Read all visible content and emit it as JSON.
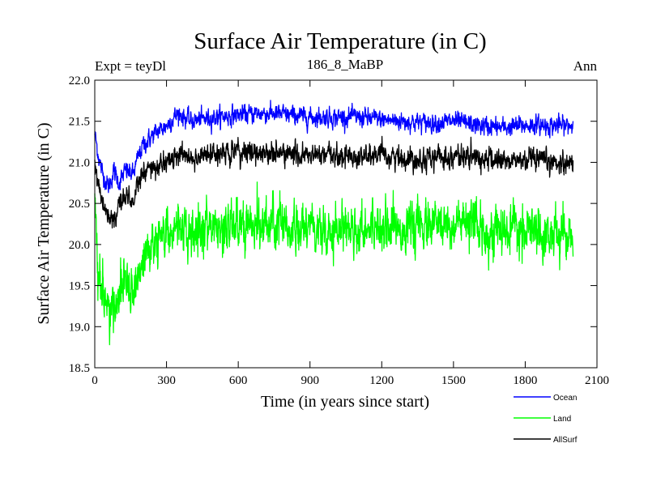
{
  "chart_data": {
    "type": "line",
    "title": "Surface Air Temperature (in C)",
    "subtitle": "186_8_MaBP",
    "left_note": "Expt = teyDl",
    "right_note": "Ann",
    "xlabel": "Time (in years since start)",
    "ylabel": "Surface Air Temperature (in C)",
    "xlim": [
      0,
      2100
    ],
    "ylim": [
      18.5,
      22.0
    ],
    "xticks": [
      0,
      300,
      600,
      900,
      1200,
      1500,
      1800,
      2100
    ],
    "yticks": [
      18.5,
      19.0,
      19.5,
      20.0,
      20.5,
      21.0,
      21.5,
      22.0
    ],
    "ytick_labels": [
      "18.5",
      "19.0",
      "19.5",
      "20.0",
      "20.5",
      "21.0",
      "21.5",
      "22.0"
    ],
    "x_range": [
      0,
      2000
    ],
    "series": [
      {
        "name": "Ocean",
        "color": "#0000ff",
        "noise": 0.05,
        "anchors": [
          [
            0,
            21.35
          ],
          [
            20,
            21.0
          ],
          [
            40,
            20.8
          ],
          [
            60,
            20.7
          ],
          [
            80,
            20.9
          ],
          [
            100,
            20.75
          ],
          [
            130,
            20.9
          ],
          [
            160,
            20.85
          ],
          [
            180,
            21.05
          ],
          [
            200,
            21.2
          ],
          [
            250,
            21.35
          ],
          [
            300,
            21.45
          ],
          [
            350,
            21.6
          ],
          [
            400,
            21.5
          ],
          [
            500,
            21.55
          ],
          [
            600,
            21.58
          ],
          [
            700,
            21.6
          ],
          [
            800,
            21.58
          ],
          [
            900,
            21.55
          ],
          [
            1000,
            21.55
          ],
          [
            1100,
            21.55
          ],
          [
            1200,
            21.52
          ],
          [
            1300,
            21.5
          ],
          [
            1400,
            21.48
          ],
          [
            1500,
            21.5
          ],
          [
            1600,
            21.45
          ],
          [
            1700,
            21.42
          ],
          [
            1800,
            21.45
          ],
          [
            1900,
            21.45
          ],
          [
            2000,
            21.45
          ]
        ]
      },
      {
        "name": "Land",
        "color": "#00ff00",
        "noise": 0.13,
        "anchors": [
          [
            0,
            20.6
          ],
          [
            15,
            19.6
          ],
          [
            40,
            19.4
          ],
          [
            60,
            19.1
          ],
          [
            80,
            19.2
          ],
          [
            100,
            19.45
          ],
          [
            130,
            19.55
          ],
          [
            160,
            19.4
          ],
          [
            180,
            19.6
          ],
          [
            200,
            19.8
          ],
          [
            250,
            20.0
          ],
          [
            300,
            20.1
          ],
          [
            350,
            20.3
          ],
          [
            380,
            20.1
          ],
          [
            450,
            20.2
          ],
          [
            600,
            20.25
          ],
          [
            700,
            20.25
          ],
          [
            800,
            20.2
          ],
          [
            900,
            20.2
          ],
          [
            1000,
            20.22
          ],
          [
            1100,
            20.2
          ],
          [
            1200,
            20.25
          ],
          [
            1300,
            20.2
          ],
          [
            1400,
            20.22
          ],
          [
            1500,
            20.25
          ],
          [
            1600,
            20.2
          ],
          [
            1700,
            20.15
          ],
          [
            1800,
            20.15
          ],
          [
            1900,
            20.12
          ],
          [
            2000,
            20.1
          ]
        ]
      },
      {
        "name": "AllSurf",
        "color": "#000000",
        "noise": 0.06,
        "anchors": [
          [
            0,
            21.1
          ],
          [
            20,
            20.6
          ],
          [
            40,
            20.5
          ],
          [
            60,
            20.3
          ],
          [
            80,
            20.3
          ],
          [
            100,
            20.5
          ],
          [
            130,
            20.6
          ],
          [
            160,
            20.55
          ],
          [
            180,
            20.7
          ],
          [
            200,
            20.85
          ],
          [
            250,
            20.95
          ],
          [
            300,
            21.0
          ],
          [
            350,
            21.1
          ],
          [
            400,
            21.05
          ],
          [
            500,
            21.1
          ],
          [
            600,
            21.12
          ],
          [
            700,
            21.12
          ],
          [
            800,
            21.1
          ],
          [
            900,
            21.08
          ],
          [
            1000,
            21.08
          ],
          [
            1100,
            21.07
          ],
          [
            1200,
            21.08
          ],
          [
            1300,
            21.05
          ],
          [
            1400,
            21.05
          ],
          [
            1500,
            21.08
          ],
          [
            1600,
            21.05
          ],
          [
            1700,
            21.02
          ],
          [
            1800,
            21.02
          ],
          [
            1900,
            21.0
          ],
          [
            2000,
            21.0
          ]
        ]
      }
    ]
  }
}
